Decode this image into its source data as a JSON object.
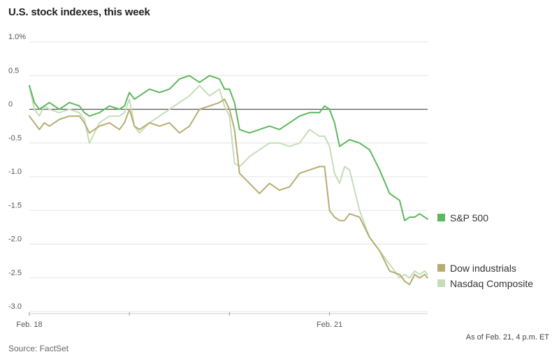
{
  "chart_data": {
    "type": "line",
    "title": "U.S. stock indexes, this week",
    "xlabel": "",
    "ylabel": "",
    "note": "As of Feb. 21, 4 p.m. ET",
    "source": "Source: FactSet",
    "y_ticks": [
      "1.0%",
      "0.5",
      "0",
      "-0.5",
      "-1.0",
      "-1.5",
      "-2.0",
      "-2.5",
      "-3.0"
    ],
    "y_tick_values": [
      1.0,
      0.5,
      0,
      -0.5,
      -1.0,
      -1.5,
      -2.0,
      -2.5,
      -3.0
    ],
    "ylim": [
      -3.0,
      1.0
    ],
    "x_ticks": [
      "Feb. 18",
      "Feb. 21"
    ],
    "x_tick_values": [
      0,
      3
    ],
    "xlim": [
      0,
      3.98
    ],
    "grid": true,
    "legend_placement": "right",
    "series": [
      {
        "name": "S&P 500",
        "color": "#5cb85c",
        "x": [
          0,
          0.05,
          0.1,
          0.15,
          0.2,
          0.3,
          0.4,
          0.5,
          0.55,
          0.6,
          0.7,
          0.8,
          0.9,
          0.95,
          1.0,
          1.05,
          1.1,
          1.2,
          1.3,
          1.4,
          1.5,
          1.6,
          1.7,
          1.8,
          1.9,
          1.95,
          2.0,
          2.05,
          2.1,
          2.2,
          2.3,
          2.4,
          2.5,
          2.6,
          2.7,
          2.8,
          2.9,
          2.95,
          3.0,
          3.05,
          3.1,
          3.15,
          3.2,
          3.3,
          3.4,
          3.5,
          3.6,
          3.7,
          3.75,
          3.8,
          3.85,
          3.9,
          3.95,
          3.98
        ],
        "values": [
          0.35,
          0.1,
          0.0,
          0.05,
          0.1,
          0.0,
          0.1,
          0.05,
          -0.05,
          -0.1,
          -0.05,
          0.05,
          0.0,
          0.05,
          0.25,
          0.15,
          0.2,
          0.3,
          0.25,
          0.3,
          0.45,
          0.5,
          0.4,
          0.5,
          0.45,
          0.3,
          0.3,
          0.1,
          -0.3,
          -0.35,
          -0.3,
          -0.25,
          -0.3,
          -0.2,
          -0.1,
          -0.05,
          -0.05,
          0.05,
          0.0,
          -0.2,
          -0.55,
          -0.5,
          -0.45,
          -0.5,
          -0.6,
          -0.9,
          -1.25,
          -1.35,
          -1.65,
          -1.6,
          -1.6,
          -1.55,
          -1.6,
          -1.63
        ]
      },
      {
        "name": "Dow industrials",
        "color": "#b5ad72",
        "x": [
          0,
          0.05,
          0.1,
          0.15,
          0.2,
          0.3,
          0.4,
          0.5,
          0.55,
          0.6,
          0.7,
          0.8,
          0.9,
          0.95,
          1.0,
          1.05,
          1.1,
          1.2,
          1.3,
          1.4,
          1.5,
          1.6,
          1.7,
          1.8,
          1.9,
          1.95,
          2.0,
          2.05,
          2.1,
          2.2,
          2.3,
          2.4,
          2.5,
          2.6,
          2.7,
          2.8,
          2.9,
          2.95,
          3.0,
          3.05,
          3.1,
          3.15,
          3.2,
          3.3,
          3.4,
          3.5,
          3.6,
          3.7,
          3.75,
          3.8,
          3.85,
          3.9,
          3.95,
          3.98
        ],
        "values": [
          -0.1,
          -0.2,
          -0.3,
          -0.2,
          -0.25,
          -0.15,
          -0.1,
          -0.1,
          -0.2,
          -0.35,
          -0.25,
          -0.2,
          -0.3,
          -0.2,
          0.0,
          -0.25,
          -0.3,
          -0.2,
          -0.25,
          -0.2,
          -0.35,
          -0.25,
          0.0,
          0.05,
          0.1,
          0.15,
          0.0,
          -0.3,
          -0.95,
          -1.1,
          -1.25,
          -1.1,
          -1.2,
          -1.15,
          -0.95,
          -0.9,
          -0.85,
          -0.85,
          -1.5,
          -1.6,
          -1.65,
          -1.65,
          -1.55,
          -1.6,
          -1.9,
          -2.1,
          -2.4,
          -2.45,
          -2.55,
          -2.6,
          -2.45,
          -2.5,
          -2.45,
          -2.5
        ]
      },
      {
        "name": "Nasdaq Composite",
        "color": "#c5ddb8",
        "x": [
          0,
          0.05,
          0.1,
          0.15,
          0.2,
          0.3,
          0.4,
          0.5,
          0.55,
          0.6,
          0.7,
          0.8,
          0.9,
          0.95,
          1.0,
          1.05,
          1.1,
          1.2,
          1.3,
          1.4,
          1.5,
          1.6,
          1.7,
          1.8,
          1.9,
          1.95,
          2.0,
          2.05,
          2.1,
          2.2,
          2.3,
          2.4,
          2.5,
          2.6,
          2.7,
          2.8,
          2.9,
          2.95,
          3.0,
          3.05,
          3.1,
          3.15,
          3.2,
          3.3,
          3.4,
          3.5,
          3.6,
          3.7,
          3.75,
          3.8,
          3.85,
          3.9,
          3.95,
          3.98
        ],
        "values": [
          0.35,
          0.0,
          -0.1,
          0.05,
          0.0,
          -0.05,
          0.0,
          -0.05,
          -0.15,
          -0.5,
          -0.2,
          -0.1,
          -0.1,
          -0.05,
          0.15,
          -0.25,
          -0.35,
          -0.2,
          -0.1,
          0.0,
          0.1,
          0.2,
          0.35,
          0.2,
          0.3,
          0.05,
          -0.1,
          -0.8,
          -0.85,
          -0.7,
          -0.6,
          -0.5,
          -0.5,
          -0.55,
          -0.5,
          -0.3,
          -0.4,
          -0.4,
          -0.55,
          -0.95,
          -1.1,
          -0.85,
          -0.9,
          -1.5,
          -1.9,
          -2.1,
          -2.3,
          -2.5,
          -2.45,
          -2.5,
          -2.4,
          -2.45,
          -2.4,
          -2.45
        ]
      }
    ]
  }
}
